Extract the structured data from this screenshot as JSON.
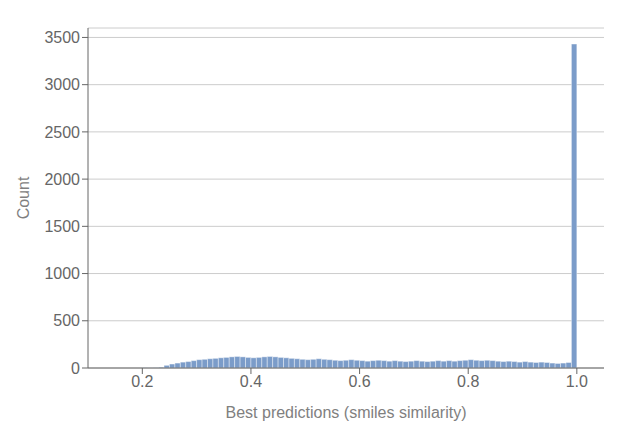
{
  "chart_data": {
    "type": "histogram",
    "xlabel": "Best predictions (smiles similarity)",
    "ylabel": "Count",
    "bins": [
      0.1,
      0.11,
      0.12,
      0.13,
      0.14,
      0.15,
      0.16,
      0.17,
      0.18,
      0.19,
      0.2,
      0.21,
      0.22,
      0.23,
      0.24,
      0.25,
      0.26,
      0.27,
      0.28,
      0.29,
      0.3,
      0.31,
      0.32,
      0.33,
      0.34,
      0.35,
      0.36,
      0.37,
      0.38,
      0.39,
      0.4,
      0.41,
      0.42,
      0.43,
      0.44,
      0.45,
      0.46,
      0.47,
      0.48,
      0.49,
      0.5,
      0.51,
      0.52,
      0.53,
      0.54,
      0.55,
      0.56,
      0.57,
      0.58,
      0.59,
      0.6,
      0.61,
      0.62,
      0.63,
      0.64,
      0.65,
      0.66,
      0.67,
      0.68,
      0.69,
      0.7,
      0.71,
      0.72,
      0.73,
      0.74,
      0.75,
      0.76,
      0.77,
      0.78,
      0.79,
      0.8,
      0.81,
      0.82,
      0.83,
      0.84,
      0.85,
      0.86,
      0.87,
      0.88,
      0.89,
      0.9,
      0.91,
      0.92,
      0.93,
      0.94,
      0.95,
      0.96,
      0.97,
      0.98,
      0.99,
      1
    ],
    "values": [
      0,
      0,
      0,
      0,
      0,
      0,
      0,
      0,
      0,
      0,
      3,
      2,
      4,
      8,
      28,
      42,
      52,
      62,
      68,
      78,
      88,
      92,
      98,
      102,
      108,
      112,
      118,
      122,
      118,
      112,
      108,
      112,
      118,
      122,
      118,
      112,
      108,
      102,
      98,
      92,
      88,
      92,
      98,
      92,
      88,
      82,
      78,
      82,
      88,
      82,
      78,
      72,
      78,
      82,
      78,
      72,
      78,
      72,
      68,
      72,
      78,
      72,
      68,
      72,
      78,
      72,
      78,
      72,
      78,
      82,
      88,
      82,
      78,
      82,
      78,
      72,
      68,
      72,
      68,
      62,
      68,
      62,
      58,
      62,
      58,
      52,
      48,
      52,
      58,
      3430
    ],
    "color": "#7b9cc9",
    "xlim": [
      0.1,
      1.05
    ],
    "ylim": [
      0,
      3600
    ],
    "xticks": [
      0.2,
      0.4,
      0.6,
      0.8,
      {
        "value": 1,
        "label": "1.0"
      }
    ],
    "yticks": [
      0,
      500,
      1000,
      1500,
      2000,
      2500,
      3000,
      3500
    ],
    "grid": true
  }
}
